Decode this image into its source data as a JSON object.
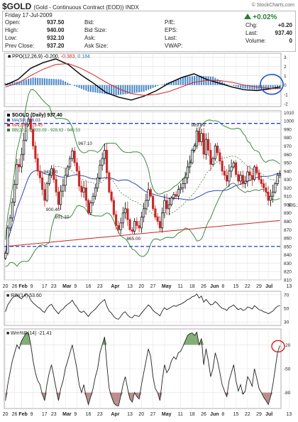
{
  "header": {
    "symbol": "$GOLD",
    "description": "(Gold - Continuous Contract (EOD)) INDX",
    "watermark": "© StockCharts.com",
    "date": "Friday  17-Jul-2009",
    "quote": [
      {
        "l1": "Open:",
        "v1": "937.50",
        "l2": "Bid:",
        "v2": ""
      },
      {
        "l1": "High:",
        "v1": "940.00",
        "l2": "Bid Size:",
        "v2": ""
      },
      {
        "l1": "Low:",
        "v1": "932.10",
        "l2": "Ask:",
        "v2": ""
      },
      {
        "l1": "Prev Close:",
        "v1": "937.20",
        "l2": "Ask Size:",
        "v2": ""
      }
    ],
    "quote2": [
      {
        "l": "P/E:",
        "v": ""
      },
      {
        "l": "EPS:",
        "v": ""
      },
      {
        "l": "Last:",
        "v": ""
      },
      {
        "l": "VWAP:",
        "v": ""
      }
    ],
    "change_pct": "+0.02%",
    "right": [
      {
        "l": "Chg:",
        "v": "+0.20"
      },
      {
        "l": "Last:",
        "v": "937.40"
      },
      {
        "l": "Volume:",
        "v": "0"
      }
    ],
    "up_color": "#2e7d32"
  },
  "chart_data": [
    {
      "type": "line",
      "panel": "PPO",
      "legend": {
        "name": "PPO(12,26,9)",
        "values": [
          "-0.200",
          "-0.383",
          "0.184"
        ],
        "colors": [
          "#000000",
          "#d62728",
          "#1f77b4"
        ]
      },
      "ylim": [
        -2.3,
        3.4
      ],
      "yticks": [
        "3",
        "2",
        "1",
        "0",
        "-1",
        "-2"
      ],
      "series": [
        {
          "name": "PPO",
          "color": "#000000",
          "x": [
            0,
            6,
            12,
            18,
            24,
            30,
            36,
            42,
            48,
            54,
            60,
            66,
            72,
            78,
            84,
            90,
            96,
            102,
            108,
            114,
            120,
            126,
            131
          ],
          "values": [
            0.0,
            0.6,
            1.8,
            2.4,
            2.8,
            2.2,
            1.1,
            0.2,
            -0.8,
            -1.3,
            -1.6,
            -1.2,
            -0.6,
            0.2,
            0.8,
            1.2,
            0.6,
            0.2,
            -0.2,
            -0.5,
            -0.6,
            -0.4,
            -0.2
          ]
        },
        {
          "name": "Signal",
          "color": "#d62728",
          "x": [
            0,
            6,
            12,
            18,
            24,
            30,
            36,
            42,
            48,
            54,
            60,
            66,
            72,
            78,
            84,
            90,
            96,
            102,
            108,
            114,
            120,
            126,
            131
          ],
          "values": [
            -0.2,
            0.2,
            1.0,
            1.7,
            2.2,
            2.3,
            1.8,
            1.1,
            0.3,
            -0.4,
            -0.9,
            -1.1,
            -1.0,
            -0.7,
            -0.2,
            0.3,
            0.5,
            0.5,
            0.3,
            0.0,
            -0.2,
            -0.35,
            -0.38
          ]
        },
        {
          "name": "Histogram",
          "color": "#4a86c5",
          "kind": "bar",
          "x": [
            0,
            6,
            12,
            18,
            24,
            30,
            36,
            42,
            48,
            54,
            60,
            66,
            72,
            78,
            84,
            90,
            96,
            102,
            108,
            114,
            120,
            126,
            131
          ],
          "values": [
            0.2,
            0.4,
            0.8,
            0.7,
            0.6,
            -0.1,
            -0.7,
            -0.9,
            -1.1,
            -0.9,
            -0.7,
            -0.1,
            0.4,
            0.9,
            1.0,
            0.9,
            0.1,
            -0.3,
            -0.5,
            -0.5,
            -0.4,
            -0.05,
            0.18
          ]
        }
      ]
    },
    {
      "type": "candlestick",
      "panel": "Price",
      "legend": [
        "$GOLD (Daily) 937.40",
        "MA(50) 936.03",
        "MA(200) 878.45",
        "BB(20,2.0) 933.09 - 928.63 - 940.53"
      ],
      "legend_colors": [
        "#000000",
        "#1f3f9f",
        "#c62828",
        "#2e7d32"
      ],
      "ylim": [
        810,
        1012
      ],
      "yticks": [
        "1010",
        "1000",
        "990",
        "980",
        "970",
        "960",
        "950",
        "940",
        "930",
        "920",
        "910",
        "900",
        "890",
        "880",
        "870",
        "860",
        "850",
        "840",
        "830",
        "820",
        "810"
      ],
      "support_lines": [
        997,
        850
      ],
      "annotations": [
        {
          "text": "989.00",
          "x": 83,
          "y": 989
        },
        {
          "text": "967.10",
          "x": 34,
          "y": 967
        },
        {
          "text": "945.50",
          "x": 19,
          "y": 945
        },
        {
          "text": "900.40",
          "x": 20,
          "y": 900
        },
        {
          "text": "891.10",
          "x": 24,
          "y": 891
        },
        {
          "text": "865.00",
          "x": 55,
          "y": 865
        },
        {
          "text": "905.10",
          "x": 125,
          "y": 905
        }
      ],
      "close": [
        842,
        872,
        884,
        903,
        924,
        948,
        945,
        960,
        977,
        996,
        1002,
        990,
        970,
        955,
        940,
        932,
        918,
        905,
        925,
        935,
        943,
        930,
        915,
        900,
        916,
        923,
        935,
        945,
        955,
        964,
        950,
        940,
        922,
        915,
        920,
        905,
        890,
        902,
        910,
        920,
        932,
        947,
        955,
        965,
        938,
        915,
        905,
        888,
        875,
        870,
        878,
        890,
        895,
        882,
        870,
        868,
        880,
        875,
        872,
        885,
        895,
        905,
        918,
        910,
        895,
        885,
        880,
        872,
        890,
        905,
        895,
        900,
        908,
        912,
        910,
        918,
        920,
        925,
        932,
        945,
        950,
        965,
        970,
        988,
        975,
        985,
        960,
        978,
        965,
        948,
        955,
        970,
        962,
        952,
        940,
        935,
        928,
        940,
        945,
        950,
        936,
        928,
        935,
        925,
        928,
        939,
        935,
        930,
        945,
        938,
        930,
        925,
        920,
        915,
        905,
        910,
        915,
        925,
        935,
        937
      ]
    },
    {
      "type": "line",
      "panel": "RSI",
      "legend": "RSI(14) 53.60",
      "ylim": [
        25,
        75
      ],
      "yticks": [
        "70",
        "50",
        "30"
      ],
      "series": [
        {
          "name": "RSI",
          "values": [
            45,
            55,
            60,
            65,
            68,
            70,
            66,
            64,
            68,
            71,
            69,
            62,
            58,
            55,
            52,
            50,
            46,
            44,
            50,
            54,
            56,
            50,
            46,
            42,
            47,
            49,
            53,
            56,
            58,
            62,
            56,
            52,
            46,
            44,
            46,
            42,
            38,
            43,
            46,
            49,
            53,
            57,
            60,
            63,
            53,
            46,
            43,
            38,
            35,
            34,
            38,
            43,
            45,
            40,
            37,
            36,
            40,
            39,
            38,
            43,
            47,
            51,
            55,
            52,
            47,
            44,
            42,
            39,
            46,
            51,
            48,
            50,
            52,
            54,
            53,
            55,
            56,
            58,
            60,
            63,
            64,
            67,
            68,
            71,
            65,
            68,
            59,
            63,
            59,
            55,
            56,
            60,
            57,
            53,
            50,
            49,
            47,
            51,
            53,
            55,
            51,
            48,
            50,
            47,
            48,
            52,
            51,
            49,
            54,
            51,
            48,
            47,
            45,
            44,
            42,
            44,
            46,
            50,
            53,
            54
          ]
        }
      ]
    },
    {
      "type": "line",
      "panel": "WilliamsR",
      "legend": "Wm%R(14) -21.41",
      "ylim": [
        -100,
        0
      ],
      "yticks": [
        "-20",
        "-50",
        "-80"
      ],
      "series": [
        {
          "name": "%R",
          "values": [
            -90,
            -70,
            -55,
            -40,
            -30,
            -20,
            -25,
            -15,
            -10,
            -5,
            -5,
            -20,
            -40,
            -55,
            -65,
            -70,
            -82,
            -90,
            -70,
            -55,
            -45,
            -60,
            -75,
            -90,
            -75,
            -65,
            -50,
            -40,
            -30,
            -20,
            -35,
            -50,
            -70,
            -80,
            -70,
            -85,
            -95,
            -85,
            -75,
            -60,
            -50,
            -30,
            -20,
            -10,
            -45,
            -75,
            -85,
            -93,
            -96,
            -97,
            -85,
            -70,
            -60,
            -75,
            -88,
            -92,
            -80,
            -85,
            -88,
            -70,
            -55,
            -40,
            -25,
            -35,
            -60,
            -75,
            -80,
            -90,
            -65,
            -45,
            -55,
            -50,
            -40,
            -35,
            -38,
            -30,
            -28,
            -22,
            -15,
            -8,
            -6,
            -5,
            -8,
            -4,
            -20,
            -12,
            -45,
            -25,
            -40,
            -60,
            -50,
            -30,
            -40,
            -55,
            -70,
            -78,
            -85,
            -65,
            -55,
            -45,
            -65,
            -78,
            -70,
            -82,
            -78,
            -60,
            -65,
            -72,
            -50,
            -62,
            -75,
            -80,
            -86,
            -90,
            -95,
            -85,
            -70,
            -50,
            -30,
            -21
          ]
        }
      ]
    }
  ],
  "x_axis": {
    "labels": [
      {
        "t": "20",
        "i": 0
      },
      {
        "t": "26",
        "i": 4
      },
      {
        "t": "Feb",
        "i": 7,
        "bold": true
      },
      {
        "t": "9",
        "i": 12
      },
      {
        "t": "17",
        "i": 17
      },
      {
        "t": "23",
        "i": 21
      },
      {
        "t": "Mar",
        "i": 26,
        "bold": true
      },
      {
        "t": "9",
        "i": 31
      },
      {
        "t": "16",
        "i": 36
      },
      {
        "t": "23",
        "i": 41
      },
      {
        "t": "Apr",
        "i": 47,
        "bold": true
      },
      {
        "t": "13",
        "i": 54
      },
      {
        "t": "20",
        "i": 59
      },
      {
        "t": "27",
        "i": 64
      },
      {
        "t": "May",
        "i": 69,
        "bold": true
      },
      {
        "t": "11",
        "i": 76
      },
      {
        "t": "18",
        "i": 81
      },
      {
        "t": "26",
        "i": 86
      },
      {
        "t": "Jun",
        "i": 90,
        "bold": true
      },
      {
        "t": "8",
        "i": 95
      },
      {
        "t": "15",
        "i": 100
      },
      {
        "t": "22",
        "i": 105
      },
      {
        "t": "29",
        "i": 110
      },
      {
        "t": "Jul",
        "i": 114,
        "bold": true
      },
      {
        "t": "13",
        "i": 123
      }
    ]
  },
  "colors": {
    "up": "#000000",
    "down": "#c62828",
    "ma50": "#3548a8",
    "ma200": "#c62828",
    "bb": "#2e7d32",
    "support": "#1f3fbf",
    "wm_fill": "#6f9f5f",
    "wm_fill_low": "#b07a7a",
    "circle_blue": "#2255cc",
    "circle_red": "#d62728"
  }
}
